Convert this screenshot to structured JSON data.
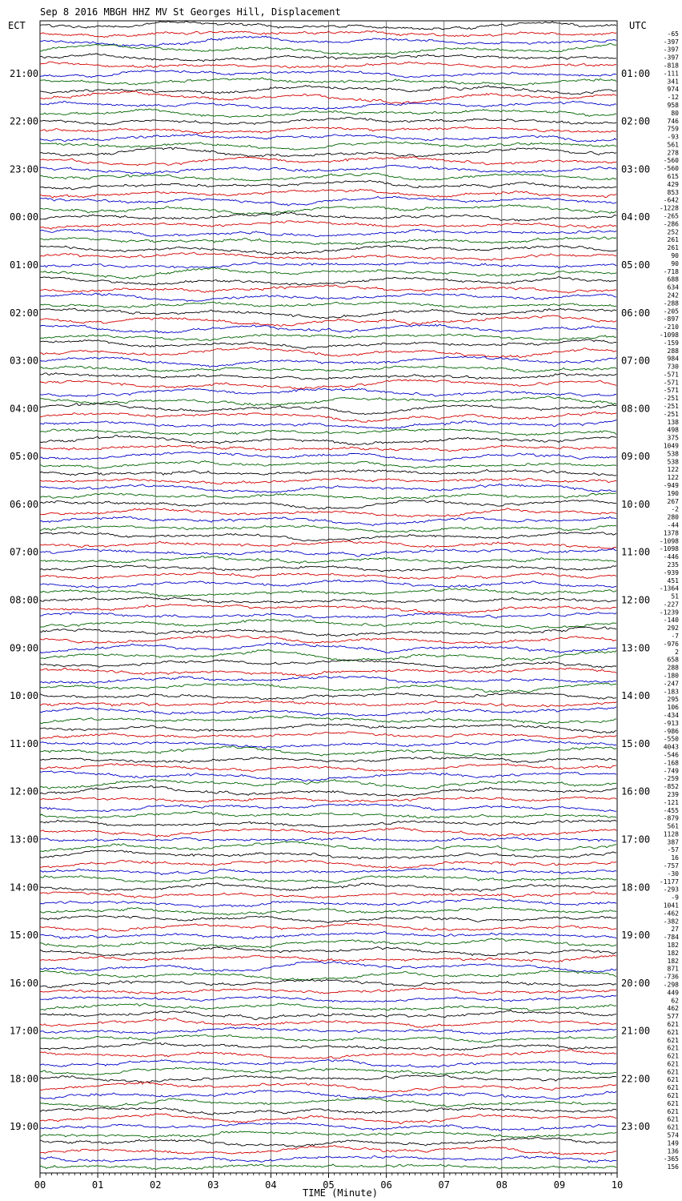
{
  "title": "Sep  8 2016 MBGH HHZ MV St Georges Hill, Displacement",
  "chart_data": {
    "type": "line",
    "title": "Sep  8 2016 MBGH HHZ MV St Georges Hill, Displacement",
    "xlabel": "TIME (Minute)",
    "left_axis_label": "ECT",
    "right_axis_label": "UTC",
    "x_ticks": [
      "00",
      "01",
      "02",
      "03",
      "04",
      "05",
      "06",
      "07",
      "08",
      "09",
      "10"
    ],
    "xlim": [
      0,
      10
    ],
    "left_hours": [
      "21:00",
      "22:00",
      "23:00",
      "00:00",
      "01:00",
      "02:00",
      "03:00",
      "04:00",
      "05:00",
      "06:00",
      "07:00",
      "08:00",
      "09:00",
      "10:00",
      "11:00",
      "12:00",
      "13:00",
      "14:00",
      "15:00",
      "16:00",
      "17:00",
      "18:00",
      "19:00"
    ],
    "right_hours": [
      "01:00",
      "02:00",
      "03:00",
      "04:00",
      "05:00",
      "06:00",
      "07:00",
      "08:00",
      "09:00",
      "10:00",
      "11:00",
      "12:00",
      "13:00",
      "14:00",
      "15:00",
      "16:00",
      "17:00",
      "18:00",
      "19:00",
      "20:00",
      "21:00",
      "22:00",
      "23:00"
    ],
    "trace_colors": [
      "#000000",
      "#d40000",
      "#0000c8",
      "#006400"
    ],
    "trace_count": 144,
    "grid": true,
    "offsets": [
      "-65",
      "-397",
      "-397",
      "-397",
      "-818",
      "-111",
      "341",
      "974",
      "-12",
      "958",
      "80",
      "746",
      "759",
      "-93",
      "561",
      "278",
      "-560",
      "-560",
      "615",
      "429",
      "853",
      "-642",
      "-1228",
      "-265",
      "-286",
      "252",
      "261",
      "261",
      "90",
      "90",
      "-718",
      "688",
      "634",
      "242",
      "-288",
      "-205",
      "-897",
      "-210",
      "-1098",
      "-159",
      "288",
      "984",
      "730",
      "-571",
      "-571",
      "-571",
      "-251",
      "-251",
      "-251",
      "138",
      "498",
      "375",
      "1049",
      "538",
      "538",
      "122",
      "122",
      "-949",
      "190",
      "267",
      "-2",
      "280",
      "-44",
      "1378",
      "-1098",
      "-1098",
      "-446",
      "235",
      "-939",
      "451",
      "-1364",
      "51",
      "-227",
      "-1239",
      "-140",
      "292",
      "-7",
      "-976",
      "2",
      "658",
      "288",
      "-180",
      "-247",
      "-183",
      "295",
      "106",
      "-434",
      "-913",
      "-986",
      "-550",
      "4043",
      "-546",
      "-168",
      "-749",
      "-259",
      "-852",
      "239",
      "-121",
      "-455",
      "-879",
      "561",
      "1128",
      "387",
      "-57",
      "16",
      "-757",
      "-30",
      "-1177",
      "-293",
      "-9",
      "1041",
      "-462",
      "-382",
      "27",
      "-784",
      "182",
      "182",
      "182",
      "871",
      "-736",
      "-298",
      "449",
      "62",
      "462",
      "577",
      "621",
      "621",
      "621",
      "621",
      "621",
      "621",
      "621",
      "621",
      "621",
      "621",
      "621",
      "621",
      "621",
      "621",
      "574",
      "149",
      "136",
      "-365",
      "156"
    ]
  }
}
